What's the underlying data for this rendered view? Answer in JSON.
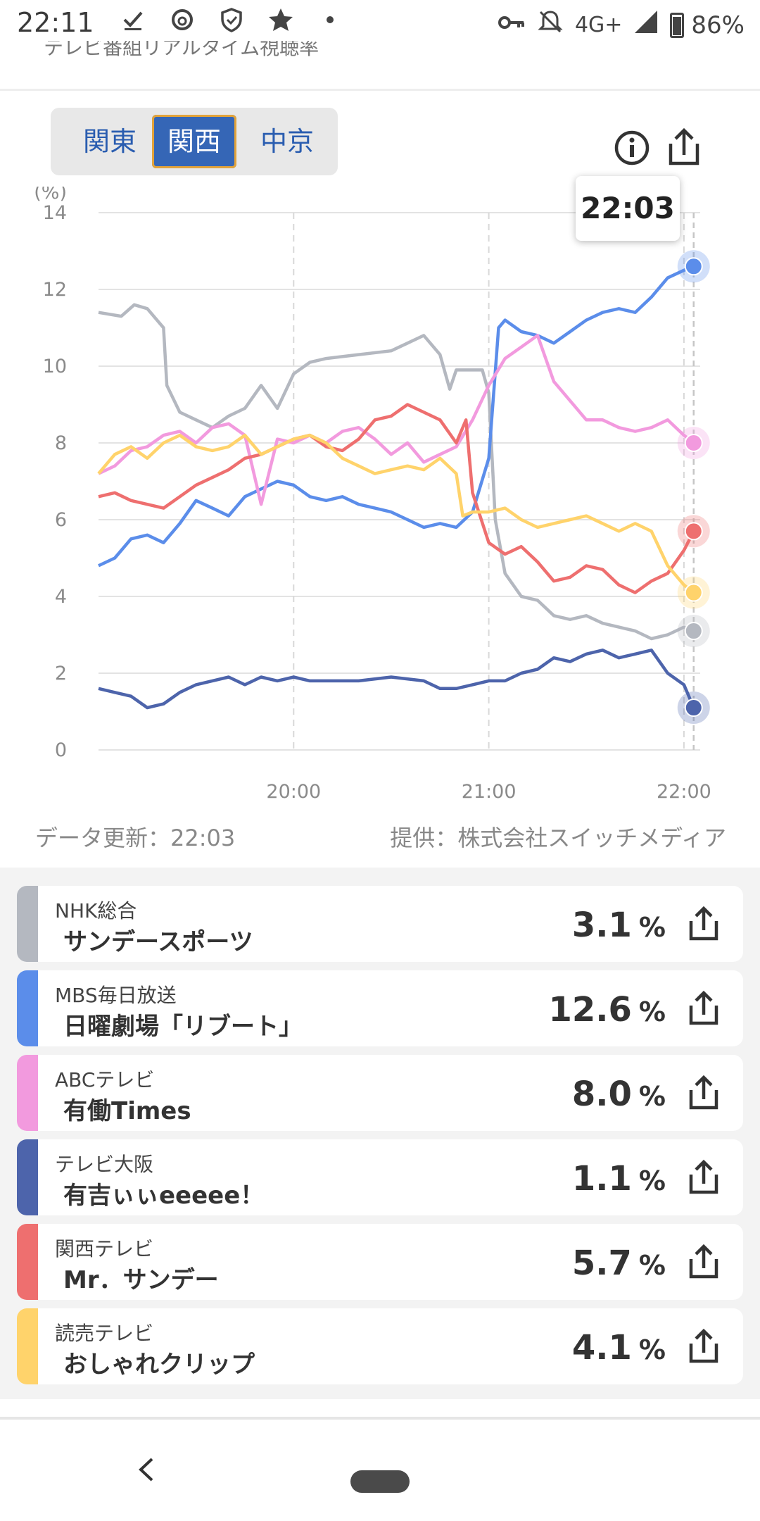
{
  "status_bar": {
    "time": "22:11",
    "left_icons": [
      "download-done-icon",
      "threads-icon",
      "shield-icon",
      "star-icon",
      "dot-icon"
    ],
    "network": "4G+",
    "battery": "86%",
    "battery_level": 0.86
  },
  "header": {
    "title": "テレビ番組リアルタイム視聴率"
  },
  "regions": {
    "items": [
      "関東",
      "関西",
      "中京"
    ],
    "selected": "関西"
  },
  "chart_data": {
    "type": "line",
    "unit_label": "(%)",
    "ylim": [
      0,
      14
    ],
    "y_ticks": [
      "0",
      "2",
      "4",
      "6",
      "8",
      "10",
      "12",
      "14"
    ],
    "x_range": [
      "19:00",
      "22:05"
    ],
    "x_ticks": [
      "20:00",
      "21:00",
      "22:00"
    ],
    "grid": true,
    "tooltip_time": "22:03",
    "series": [
      {
        "name": "NHK総合",
        "color": "#b4b8c0",
        "points": [
          [
            "19:00",
            11.4
          ],
          [
            "19:07",
            11.3
          ],
          [
            "19:11",
            11.6
          ],
          [
            "19:15",
            11.5
          ],
          [
            "19:20",
            11.0
          ],
          [
            "19:21",
            9.5
          ],
          [
            "19:25",
            8.8
          ],
          [
            "19:30",
            8.6
          ],
          [
            "19:35",
            8.4
          ],
          [
            "19:40",
            8.7
          ],
          [
            "19:45",
            8.9
          ],
          [
            "19:50",
            9.5
          ],
          [
            "19:55",
            8.9
          ],
          [
            "20:00",
            9.8
          ],
          [
            "20:05",
            10.1
          ],
          [
            "20:10",
            10.2
          ],
          [
            "20:20",
            10.3
          ],
          [
            "20:30",
            10.4
          ],
          [
            "20:35",
            10.6
          ],
          [
            "20:40",
            10.8
          ],
          [
            "20:45",
            10.3
          ],
          [
            "20:48",
            9.4
          ],
          [
            "20:50",
            9.9
          ],
          [
            "20:55",
            9.9
          ],
          [
            "20:58",
            9.9
          ],
          [
            "21:00",
            9.3
          ],
          [
            "21:02",
            6.0
          ],
          [
            "21:05",
            4.6
          ],
          [
            "21:10",
            4.0
          ],
          [
            "21:15",
            3.9
          ],
          [
            "21:20",
            3.5
          ],
          [
            "21:25",
            3.4
          ],
          [
            "21:30",
            3.5
          ],
          [
            "21:35",
            3.3
          ],
          [
            "21:40",
            3.2
          ],
          [
            "21:45",
            3.1
          ],
          [
            "21:50",
            2.9
          ],
          [
            "21:55",
            3.0
          ],
          [
            "22:00",
            3.2
          ],
          [
            "22:03",
            3.1
          ]
        ]
      },
      {
        "name": "MBS毎日放送",
        "color": "#5b8dea",
        "points": [
          [
            "19:00",
            4.8
          ],
          [
            "19:05",
            5.0
          ],
          [
            "19:10",
            5.5
          ],
          [
            "19:15",
            5.6
          ],
          [
            "19:20",
            5.4
          ],
          [
            "19:25",
            5.9
          ],
          [
            "19:30",
            6.5
          ],
          [
            "19:35",
            6.3
          ],
          [
            "19:40",
            6.1
          ],
          [
            "19:45",
            6.6
          ],
          [
            "19:50",
            6.8
          ],
          [
            "19:55",
            7.0
          ],
          [
            "20:00",
            6.9
          ],
          [
            "20:05",
            6.6
          ],
          [
            "20:10",
            6.5
          ],
          [
            "20:15",
            6.6
          ],
          [
            "20:20",
            6.4
          ],
          [
            "20:25",
            6.3
          ],
          [
            "20:30",
            6.2
          ],
          [
            "20:35",
            6.0
          ],
          [
            "20:40",
            5.8
          ],
          [
            "20:45",
            5.9
          ],
          [
            "20:50",
            5.8
          ],
          [
            "20:55",
            6.2
          ],
          [
            "21:00",
            7.6
          ],
          [
            "21:03",
            11.0
          ],
          [
            "21:05",
            11.2
          ],
          [
            "21:10",
            10.9
          ],
          [
            "21:15",
            10.8
          ],
          [
            "21:20",
            10.6
          ],
          [
            "21:25",
            10.9
          ],
          [
            "21:30",
            11.2
          ],
          [
            "21:35",
            11.4
          ],
          [
            "21:40",
            11.5
          ],
          [
            "21:45",
            11.4
          ],
          [
            "21:50",
            11.8
          ],
          [
            "21:55",
            12.3
          ],
          [
            "22:00",
            12.5
          ],
          [
            "22:03",
            12.6
          ]
        ]
      },
      {
        "name": "ABCテレビ",
        "color": "#f29ade",
        "points": [
          [
            "19:00",
            7.2
          ],
          [
            "19:05",
            7.4
          ],
          [
            "19:10",
            7.8
          ],
          [
            "19:15",
            7.9
          ],
          [
            "19:20",
            8.2
          ],
          [
            "19:25",
            8.3
          ],
          [
            "19:30",
            8.0
          ],
          [
            "19:35",
            8.4
          ],
          [
            "19:40",
            8.5
          ],
          [
            "19:45",
            8.2
          ],
          [
            "19:50",
            6.4
          ],
          [
            "19:55",
            8.1
          ],
          [
            "20:00",
            8.0
          ],
          [
            "20:05",
            8.2
          ],
          [
            "20:10",
            8.0
          ],
          [
            "20:15",
            8.3
          ],
          [
            "20:20",
            8.4
          ],
          [
            "20:25",
            8.1
          ],
          [
            "20:30",
            7.7
          ],
          [
            "20:35",
            8.0
          ],
          [
            "20:40",
            7.5
          ],
          [
            "20:45",
            7.7
          ],
          [
            "20:50",
            7.9
          ],
          [
            "20:55",
            8.6
          ],
          [
            "21:00",
            9.5
          ],
          [
            "21:05",
            10.2
          ],
          [
            "21:10",
            10.5
          ],
          [
            "21:15",
            10.8
          ],
          [
            "21:20",
            9.6
          ],
          [
            "21:25",
            9.1
          ],
          [
            "21:30",
            8.6
          ],
          [
            "21:35",
            8.6
          ],
          [
            "21:40",
            8.4
          ],
          [
            "21:45",
            8.3
          ],
          [
            "21:50",
            8.4
          ],
          [
            "21:55",
            8.6
          ],
          [
            "22:00",
            8.2
          ],
          [
            "22:03",
            8.0
          ]
        ]
      },
      {
        "name": "テレビ大阪",
        "color": "#4d64ab",
        "points": [
          [
            "19:00",
            1.6
          ],
          [
            "19:05",
            1.5
          ],
          [
            "19:10",
            1.4
          ],
          [
            "19:15",
            1.1
          ],
          [
            "19:20",
            1.2
          ],
          [
            "19:25",
            1.5
          ],
          [
            "19:30",
            1.7
          ],
          [
            "19:35",
            1.8
          ],
          [
            "19:40",
            1.9
          ],
          [
            "19:45",
            1.7
          ],
          [
            "19:50",
            1.9
          ],
          [
            "19:55",
            1.8
          ],
          [
            "20:00",
            1.9
          ],
          [
            "20:05",
            1.8
          ],
          [
            "20:10",
            1.8
          ],
          [
            "20:20",
            1.8
          ],
          [
            "20:30",
            1.9
          ],
          [
            "20:40",
            1.8
          ],
          [
            "20:45",
            1.6
          ],
          [
            "20:50",
            1.6
          ],
          [
            "20:55",
            1.7
          ],
          [
            "21:00",
            1.8
          ],
          [
            "21:05",
            1.8
          ],
          [
            "21:10",
            2.0
          ],
          [
            "21:15",
            2.1
          ],
          [
            "21:20",
            2.4
          ],
          [
            "21:25",
            2.3
          ],
          [
            "21:30",
            2.5
          ],
          [
            "21:35",
            2.6
          ],
          [
            "21:40",
            2.4
          ],
          [
            "21:45",
            2.5
          ],
          [
            "21:50",
            2.6
          ],
          [
            "21:55",
            2.0
          ],
          [
            "22:00",
            1.7
          ],
          [
            "22:03",
            1.1
          ]
        ]
      },
      {
        "name": "関西テレビ",
        "color": "#ee6f6f",
        "points": [
          [
            "19:00",
            6.6
          ],
          [
            "19:05",
            6.7
          ],
          [
            "19:10",
            6.5
          ],
          [
            "19:15",
            6.4
          ],
          [
            "19:20",
            6.3
          ],
          [
            "19:25",
            6.6
          ],
          [
            "19:30",
            6.9
          ],
          [
            "19:35",
            7.1
          ],
          [
            "19:40",
            7.3
          ],
          [
            "19:45",
            7.6
          ],
          [
            "19:50",
            7.7
          ],
          [
            "19:55",
            7.9
          ],
          [
            "20:00",
            8.1
          ],
          [
            "20:05",
            8.2
          ],
          [
            "20:10",
            7.9
          ],
          [
            "20:15",
            7.8
          ],
          [
            "20:20",
            8.1
          ],
          [
            "20:25",
            8.6
          ],
          [
            "20:30",
            8.7
          ],
          [
            "20:35",
            9.0
          ],
          [
            "20:40",
            8.8
          ],
          [
            "20:45",
            8.6
          ],
          [
            "20:50",
            8.0
          ],
          [
            "20:53",
            8.6
          ],
          [
            "20:55",
            6.7
          ],
          [
            "21:00",
            5.4
          ],
          [
            "21:05",
            5.1
          ],
          [
            "21:10",
            5.3
          ],
          [
            "21:15",
            4.9
          ],
          [
            "21:20",
            4.4
          ],
          [
            "21:25",
            4.5
          ],
          [
            "21:30",
            4.8
          ],
          [
            "21:35",
            4.7
          ],
          [
            "21:40",
            4.3
          ],
          [
            "21:45",
            4.1
          ],
          [
            "21:50",
            4.4
          ],
          [
            "21:55",
            4.6
          ],
          [
            "22:00",
            5.2
          ],
          [
            "22:03",
            5.7
          ]
        ]
      },
      {
        "name": "読売テレビ",
        "color": "#ffd36b",
        "points": [
          [
            "19:00",
            7.2
          ],
          [
            "19:05",
            7.7
          ],
          [
            "19:10",
            7.9
          ],
          [
            "19:15",
            7.6
          ],
          [
            "19:20",
            8.0
          ],
          [
            "19:25",
            8.2
          ],
          [
            "19:30",
            7.9
          ],
          [
            "19:35",
            7.8
          ],
          [
            "19:40",
            7.9
          ],
          [
            "19:45",
            8.2
          ],
          [
            "19:50",
            7.7
          ],
          [
            "19:55",
            7.9
          ],
          [
            "20:00",
            8.1
          ],
          [
            "20:05",
            8.2
          ],
          [
            "20:10",
            8.0
          ],
          [
            "20:15",
            7.6
          ],
          [
            "20:20",
            7.4
          ],
          [
            "20:25",
            7.2
          ],
          [
            "20:30",
            7.3
          ],
          [
            "20:35",
            7.4
          ],
          [
            "20:40",
            7.3
          ],
          [
            "20:45",
            7.6
          ],
          [
            "20:50",
            7.2
          ],
          [
            "20:52",
            6.1
          ],
          [
            "20:55",
            6.2
          ],
          [
            "21:00",
            6.2
          ],
          [
            "21:05",
            6.3
          ],
          [
            "21:10",
            6.0
          ],
          [
            "21:15",
            5.8
          ],
          [
            "21:20",
            5.9
          ],
          [
            "21:25",
            6.0
          ],
          [
            "21:30",
            6.1
          ],
          [
            "21:35",
            5.9
          ],
          [
            "21:40",
            5.7
          ],
          [
            "21:45",
            5.9
          ],
          [
            "21:50",
            5.7
          ],
          [
            "21:55",
            4.8
          ],
          [
            "22:00",
            4.3
          ],
          [
            "22:03",
            4.1
          ]
        ]
      }
    ]
  },
  "chart_footer": {
    "updated": "データ更新：22:03",
    "provider": "提供：株式会社スイッチメディア"
  },
  "ratings": [
    {
      "channel": "NHK総合",
      "program": "サンデースポーツ",
      "rating": "3.1",
      "unit": "%",
      "color": "#b4b8c0"
    },
    {
      "channel": "MBS毎日放送",
      "program": "日曜劇場「リブート」",
      "rating": "12.6",
      "unit": "%",
      "color": "#5b8dea"
    },
    {
      "channel": "ABCテレビ",
      "program": "有働Times",
      "rating": "8.0",
      "unit": "%",
      "color": "#f29ade"
    },
    {
      "channel": "テレビ大阪",
      "program": "有吉ぃぃeeeee！",
      "rating": "1.1",
      "unit": "%",
      "color": "#4d64ab"
    },
    {
      "channel": "関西テレビ",
      "program": "Mr．サンデー",
      "rating": "5.7",
      "unit": "%",
      "color": "#ee6f6f"
    },
    {
      "channel": "読売テレビ",
      "program": "おしゃれクリップ",
      "rating": "4.1",
      "unit": "%",
      "color": "#ffd36b"
    }
  ]
}
